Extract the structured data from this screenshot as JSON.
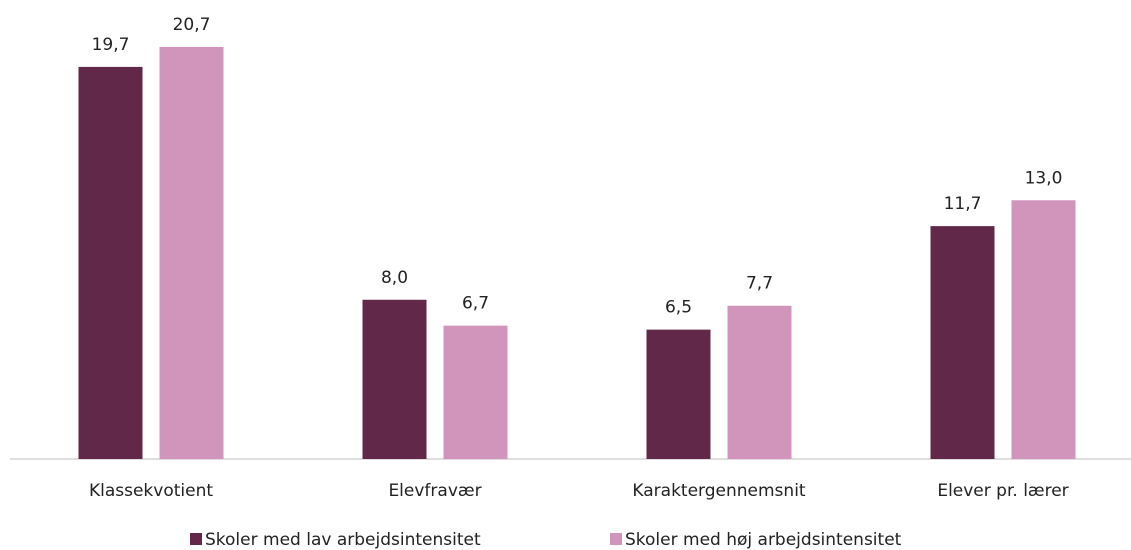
{
  "chart_data": {
    "type": "bar",
    "categories": [
      "Klassekvotient",
      "Elevfravær",
      "Karaktergennemsnit",
      "Elever pr. lærer"
    ],
    "series": [
      {
        "name": "Skoler med lav arbejdsintensitet",
        "color": "#62284a",
        "values": [
          19.7,
          8.0,
          6.5,
          11.7
        ],
        "value_labels": [
          "19,7",
          "8,0",
          "6,5",
          "11,7"
        ]
      },
      {
        "name": "Skoler med høj arbejdsintensitet",
        "color": "#d195bb",
        "values": [
          20.7,
          6.7,
          7.7,
          13.0
        ],
        "value_labels": [
          "20,7",
          "6,7",
          "7,7",
          "13,0"
        ]
      }
    ],
    "legend": "bottom"
  }
}
